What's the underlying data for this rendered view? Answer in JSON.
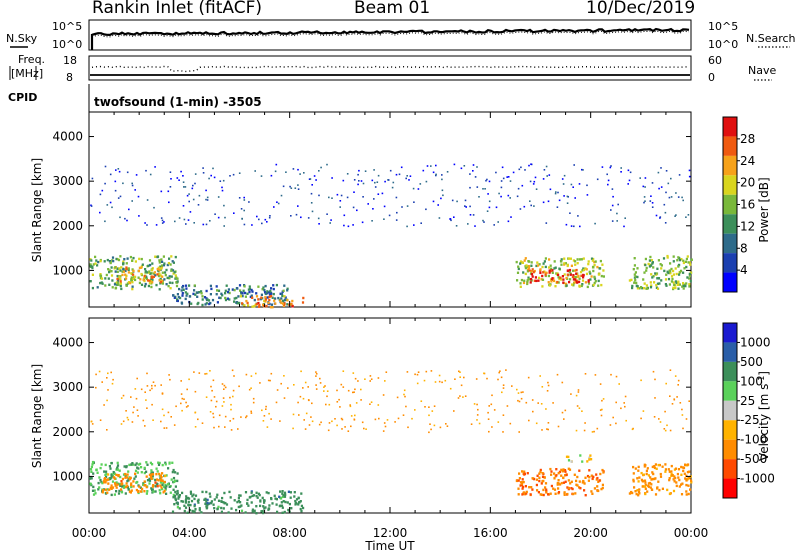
{
  "header": {
    "station": "Rankin Inlet (fitACF)",
    "beam": "Beam 01",
    "date": "10/Dec/2019"
  },
  "left_labels": {
    "nsky": "N.Sky",
    "freq": "Freq.",
    "freq_unit": "[MHz]",
    "cpid": "CPID"
  },
  "right_labels": {
    "nsearch": "N.Search",
    "nave": "Nave"
  },
  "noise_panel": {
    "left_ticks": [
      "10^5",
      "10^0"
    ],
    "right_ticks": [
      "10^5",
      "10^0"
    ]
  },
  "freq_panel": {
    "left_ticks": [
      "18",
      "8"
    ],
    "right_ticks": [
      "60",
      "0"
    ]
  },
  "cpid_text": "twofsound (1-min) -3505",
  "colors": {
    "power_scale": [
      "#0000ff",
      "#1b3fb0",
      "#2e6b8a",
      "#3c8f5a",
      "#79b83a",
      "#d9d51e",
      "#f7a21a",
      "#f05a10",
      "#e01010"
    ],
    "velocity_scale": [
      "#ff0000",
      "#ff4a00",
      "#ff8c00",
      "#ffb300",
      "#c8c8c8",
      "#5ad15a",
      "#3c8f5a",
      "#2a5ea8",
      "#1a1ad0"
    ]
  },
  "chart_data": [
    {
      "type": "heatmap",
      "title": "",
      "xlabel": "",
      "ylabel": "Slant Range [km]",
      "x_ticks": [
        "00:00",
        "04:00",
        "08:00",
        "12:00",
        "16:00",
        "20:00",
        "00:00"
      ],
      "y_ticks": [
        1000,
        2000,
        3000,
        4000
      ],
      "xlim": [
        0,
        24
      ],
      "ylim": [
        180,
        4550
      ],
      "colorbar": {
        "label": "Power [dB]",
        "ticks": [
          4,
          8,
          12,
          16,
          20,
          24,
          28
        ],
        "range": [
          0,
          32
        ]
      },
      "regions": [
        {
          "t_start": 0.0,
          "t_end": 3.5,
          "range_low": 600,
          "range_high": 1350,
          "value": 14
        },
        {
          "t_start": 1.0,
          "t_end": 3.0,
          "range_low": 700,
          "range_high": 1100,
          "value": 22
        },
        {
          "t_start": 3.3,
          "t_end": 8.0,
          "range_low": 250,
          "range_high": 700,
          "value": 10
        },
        {
          "t_start": 6.0,
          "t_end": 8.5,
          "range_low": 200,
          "range_high": 450,
          "value": 24
        },
        {
          "t_start": 17.0,
          "t_end": 20.5,
          "range_low": 650,
          "range_high": 1300,
          "value": 18
        },
        {
          "t_start": 17.5,
          "t_end": 20.0,
          "range_low": 750,
          "range_high": 1050,
          "value": 28
        },
        {
          "t_start": 21.5,
          "t_end": 24.0,
          "range_low": 600,
          "range_high": 1350,
          "value": 16
        },
        {
          "t_start": 0.0,
          "t_end": 24.0,
          "range_low": 2000,
          "range_high": 3400,
          "value": 5
        }
      ]
    },
    {
      "type": "heatmap",
      "title": "",
      "xlabel": "Time UT",
      "ylabel": "Slant Range [km]",
      "x_ticks": [
        "00:00",
        "04:00",
        "08:00",
        "12:00",
        "16:00",
        "20:00",
        "00:00"
      ],
      "y_ticks": [
        1000,
        2000,
        3000,
        4000
      ],
      "xlim": [
        0,
        24
      ],
      "ylim": [
        180,
        4550
      ],
      "colorbar": {
        "label": "Velocity [m s^-1]",
        "ticks": [
          1000,
          500,
          100,
          25,
          -25,
          -100,
          -500,
          -1000
        ]
      },
      "regions": [
        {
          "t_start": 0.0,
          "t_end": 3.5,
          "range_low": 600,
          "range_high": 1350,
          "value": 100
        },
        {
          "t_start": 0.5,
          "t_end": 3.0,
          "range_low": 650,
          "range_high": 1100,
          "value": -300
        },
        {
          "t_start": 3.3,
          "t_end": 8.5,
          "range_low": 200,
          "range_high": 700,
          "value": 300
        },
        {
          "t_start": 17.0,
          "t_end": 20.5,
          "range_low": 600,
          "range_high": 1200,
          "value": -400
        },
        {
          "t_start": 19.0,
          "t_end": 20.0,
          "range_low": 1350,
          "range_high": 1500,
          "value": 0
        },
        {
          "t_start": 21.5,
          "t_end": 24.0,
          "range_low": 600,
          "range_high": 1300,
          "value": -200
        },
        {
          "t_start": 0.0,
          "t_end": 24.0,
          "range_low": 2000,
          "range_high": 3400,
          "value": -150
        }
      ]
    }
  ]
}
